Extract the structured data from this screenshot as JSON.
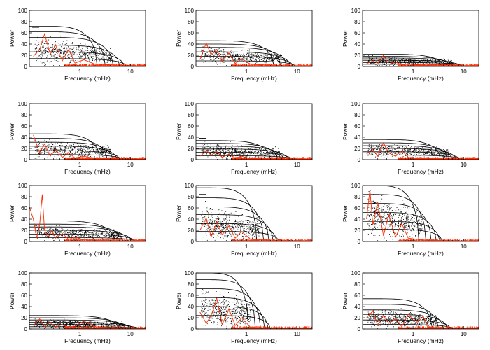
{
  "figure": {
    "axis_labels": {
      "x": "Frequency (mHz)",
      "y": "Power"
    },
    "grid": false
  },
  "chart_data": [
    {
      "type": "scatter",
      "panel": 1,
      "xscale": "log",
      "xlim": [
        0.1,
        20
      ],
      "ylim": [
        0,
        100
      ],
      "ytick_labels": [
        "0",
        "20",
        "40",
        "60",
        "80",
        "100"
      ],
      "xtick_labels": [
        "1",
        "10"
      ],
      "xlabel": "Frequency (mHz)",
      "ylabel": "Power",
      "contour_levels": [
        72,
        62,
        52,
        38,
        26,
        14
      ],
      "contour_extent_mhz": [
        2.2,
        3.2,
        4.6,
        6.2,
        7.6,
        8.4
      ],
      "scatter": {
        "center_power": 31,
        "spread_power": 11,
        "max_mhz": 4
      },
      "red_curve": {
        "x": [
          0.12,
          0.16,
          0.2,
          0.26,
          0.33,
          0.45,
          0.6,
          0.8,
          1.2,
          2,
          4,
          8,
          20
        ],
        "y": [
          18,
          30,
          58,
          22,
          38,
          10,
          30,
          6,
          12,
          4,
          3,
          2,
          1
        ]
      },
      "dash_power": 70,
      "colors": {
        "scatter": "#000000",
        "contours": "#000000",
        "red_curve": "#ff2a00"
      }
    },
    {
      "type": "scatter",
      "panel": 2,
      "xscale": "log",
      "xlim": [
        0.1,
        20
      ],
      "ylim": [
        0,
        100
      ],
      "ytick_labels": [
        "0",
        "20",
        "40",
        "60",
        "80",
        "100"
      ],
      "xtick_labels": [
        "1",
        "10"
      ],
      "xlabel": "Frequency (mHz)",
      "ylabel": "Power",
      "contour_levels": [
        46,
        40,
        34,
        26,
        18,
        10
      ],
      "contour_extent_mhz": [
        3.5,
        4.8,
        6.3,
        7.6,
        8.5,
        9.5
      ],
      "scatter": {
        "center_power": 23,
        "spread_power": 7,
        "max_mhz": 5
      },
      "red_curve": {
        "x": [
          0.12,
          0.16,
          0.2,
          0.26,
          0.33,
          0.45,
          0.6,
          0.8,
          1.2,
          2,
          4,
          8,
          20
        ],
        "y": [
          12,
          42,
          20,
          30,
          8,
          24,
          5,
          14,
          4,
          3,
          2,
          1,
          1
        ]
      },
      "colors": {
        "scatter": "#000000",
        "contours": "#000000",
        "red_curve": "#ff2a00"
      }
    },
    {
      "type": "scatter",
      "panel": 3,
      "xscale": "log",
      "xlim": [
        0.1,
        20
      ],
      "ylim": [
        0,
        100
      ],
      "ytick_labels": [
        "0",
        "20",
        "40",
        "60",
        "80",
        "100"
      ],
      "xtick_labels": [
        "1",
        "10"
      ],
      "xlabel": "Frequency (mHz)",
      "ylabel": "Power",
      "contour_levels": [
        22,
        18,
        15,
        11,
        7,
        4
      ],
      "contour_extent_mhz": [
        4,
        5.5,
        7,
        9,
        10.5,
        11.5
      ],
      "scatter": {
        "center_power": 11,
        "spread_power": 4,
        "max_mhz": 6
      },
      "red_curve": {
        "x": [
          0.12,
          0.16,
          0.2,
          0.26,
          0.33,
          0.45,
          0.6,
          0.8,
          1.2,
          2,
          4,
          8,
          20
        ],
        "y": [
          5,
          10,
          6,
          20,
          4,
          8,
          3,
          5,
          2,
          2,
          1,
          1,
          1
        ]
      },
      "colors": {
        "scatter": "#000000",
        "contours": "#000000",
        "red_curve": "#ff2a00"
      }
    },
    {
      "type": "scatter",
      "panel": 4,
      "xscale": "log",
      "xlim": [
        0.1,
        20
      ],
      "ylim": [
        0,
        100
      ],
      "ytick_labels": [
        "0",
        "20",
        "40",
        "60",
        "80",
        "100"
      ],
      "xtick_labels": [
        "1",
        "10"
      ],
      "xlabel": "Frequency (mHz)",
      "ylabel": "Power",
      "contour_levels": [
        46,
        38,
        31,
        24,
        16,
        9
      ],
      "contour_extent_mhz": [
        2.5,
        3.5,
        4.5,
        5.5,
        6.3,
        7
      ],
      "scatter": {
        "center_power": 22,
        "spread_power": 8,
        "max_mhz": 4
      },
      "red_curve": {
        "x": [
          0.12,
          0.16,
          0.2,
          0.26,
          0.33,
          0.45,
          0.6,
          0.8,
          1.2,
          2,
          4,
          8,
          20
        ],
        "y": [
          44,
          12,
          28,
          6,
          18,
          4,
          12,
          3,
          6,
          2,
          2,
          1,
          1
        ]
      },
      "colors": {
        "scatter": "#000000",
        "contours": "#000000",
        "red_curve": "#ff2a00"
      }
    },
    {
      "type": "scatter",
      "panel": 5,
      "xscale": "log",
      "xlim": [
        0.1,
        20
      ],
      "ylim": [
        0,
        100
      ],
      "ytick_labels": [
        "0",
        "20",
        "40",
        "60",
        "80",
        "100"
      ],
      "xtick_labels": [
        "1",
        "10"
      ],
      "xlabel": "Frequency (mHz)",
      "ylabel": "Power",
      "contour_levels": [
        34,
        29,
        24,
        19,
        13,
        7
      ],
      "contour_extent_mhz": [
        3,
        4.2,
        5.5,
        6.8,
        7.8,
        8.5
      ],
      "scatter": {
        "center_power": 18,
        "spread_power": 6,
        "max_mhz": 4.5
      },
      "red_curve": {
        "x": [
          0.12,
          0.16,
          0.2,
          0.26,
          0.33,
          0.45,
          0.6,
          0.8,
          1.2,
          2,
          4,
          8,
          20
        ],
        "y": [
          6,
          16,
          8,
          14,
          4,
          10,
          3,
          6,
          2,
          2,
          1,
          1,
          1
        ]
      },
      "dash_power": 38,
      "colors": {
        "scatter": "#000000",
        "contours": "#000000",
        "red_curve": "#ff2a00"
      }
    },
    {
      "type": "scatter",
      "panel": 6,
      "xscale": "log",
      "xlim": [
        0.1,
        20
      ],
      "ylim": [
        0,
        100
      ],
      "ytick_labels": [
        "0",
        "20",
        "40",
        "60",
        "80",
        "100"
      ],
      "xtick_labels": [
        "1",
        "10"
      ],
      "xlabel": "Frequency (mHz)",
      "ylabel": "Power",
      "contour_levels": [
        36,
        30,
        25,
        20,
        14,
        8
      ],
      "contour_extent_mhz": [
        3.5,
        4.8,
        6,
        7.3,
        8.3,
        9
      ],
      "scatter": {
        "center_power": 19,
        "spread_power": 6,
        "max_mhz": 5
      },
      "red_curve": {
        "x": [
          0.12,
          0.16,
          0.2,
          0.26,
          0.33,
          0.45,
          0.6,
          0.8,
          1.2,
          2,
          4,
          8,
          20
        ],
        "y": [
          10,
          18,
          6,
          30,
          12,
          6,
          16,
          4,
          2,
          2,
          1,
          1,
          1
        ]
      },
      "colors": {
        "scatter": "#000000",
        "contours": "#000000",
        "red_curve": "#ff2a00"
      }
    },
    {
      "type": "scatter",
      "panel": 7,
      "xscale": "log",
      "xlim": [
        0.1,
        20
      ],
      "ylim": [
        0,
        100
      ],
      "ytick_labels": [
        "0",
        "20",
        "40",
        "60",
        "80",
        "100"
      ],
      "xtick_labels": [
        "1",
        "10"
      ],
      "xlabel": "Frequency (mHz)",
      "ylabel": "Power",
      "contour_levels": [
        37,
        31,
        26,
        20,
        13,
        7
      ],
      "contour_extent_mhz": [
        5,
        7,
        9,
        11,
        12.5,
        13.5
      ],
      "scatter": {
        "center_power": 18,
        "spread_power": 6,
        "max_mhz": 6
      },
      "red_curve": {
        "x": [
          0.1,
          0.12,
          0.14,
          0.16,
          0.18,
          0.2,
          0.24,
          0.28,
          0.33,
          0.45,
          0.6,
          0.8,
          1.2,
          2,
          4,
          8,
          20
        ],
        "y": [
          62,
          40,
          6,
          30,
          84,
          20,
          8,
          20,
          6,
          14,
          4,
          8,
          3,
          2,
          1,
          1,
          1
        ]
      },
      "colors": {
        "scatter": "#000000",
        "contours": "#000000",
        "red_curve": "#ff2a00"
      }
    },
    {
      "type": "scatter",
      "panel": 8,
      "xscale": "log",
      "xlim": [
        0.1,
        20
      ],
      "ylim": [
        0,
        100
      ],
      "ytick_labels": [
        "0",
        "20",
        "40",
        "60",
        "80",
        "100"
      ],
      "xtick_labels": [
        "1",
        "10"
      ],
      "xlabel": "Frequency (mHz)",
      "ylabel": "Power",
      "contour_levels": [
        96,
        78,
        62,
        48,
        32,
        18
      ],
      "contour_extent_mhz": [
        1.6,
        2.2,
        2.8,
        3.4,
        4,
        4.4
      ],
      "scatter": {
        "center_power": 34,
        "spread_power": 14,
        "max_mhz": 1.8
      },
      "red_curve": {
        "x": [
          0.12,
          0.16,
          0.2,
          0.26,
          0.33,
          0.45,
          0.6,
          0.8,
          1.2,
          2,
          4,
          8,
          20
        ],
        "y": [
          20,
          42,
          8,
          36,
          12,
          28,
          6,
          18,
          4,
          3,
          2,
          1,
          1
        ]
      },
      "dash_power": 84,
      "colors": {
        "scatter": "#000000",
        "contours": "#000000",
        "red_curve": "#ff2a00"
      }
    },
    {
      "type": "scatter",
      "panel": 9,
      "xscale": "log",
      "xlim": [
        0.1,
        20
      ],
      "ylim": [
        0,
        100
      ],
      "ytick_labels": [
        "0",
        "20",
        "40",
        "60",
        "80",
        "100"
      ],
      "xtick_labels": [
        "1",
        "10"
      ],
      "xlabel": "Frequency (mHz)",
      "ylabel": "Power",
      "contour_levels": [
        100,
        84,
        68,
        52,
        36,
        22
      ],
      "contour_extent_mhz": [
        1.3,
        1.8,
        2.3,
        2.9,
        3.4,
        3.8
      ],
      "scatter": {
        "center_power": 48,
        "spread_power": 18,
        "max_mhz": 1.5
      },
      "red_curve": {
        "x": [
          0.12,
          0.14,
          0.16,
          0.2,
          0.26,
          0.33,
          0.45,
          0.6,
          0.8,
          1.2,
          2,
          4,
          8,
          20
        ],
        "y": [
          40,
          92,
          30,
          70,
          10,
          48,
          8,
          32,
          6,
          4,
          2,
          2,
          1,
          1
        ]
      },
      "colors": {
        "scatter": "#000000",
        "contours": "#000000",
        "red_curve": "#ff2a00"
      }
    },
    {
      "type": "scatter",
      "panel": 10,
      "xscale": "log",
      "xlim": [
        0.1,
        20
      ],
      "ylim": [
        0,
        100
      ],
      "ytick_labels": [
        "0",
        "20",
        "40",
        "60",
        "80",
        "100"
      ],
      "xtick_labels": [
        "1",
        "10"
      ],
      "xlabel": "Frequency (mHz)",
      "ylabel": "Power",
      "contour_levels": [
        24,
        20,
        16,
        12,
        8,
        4
      ],
      "contour_extent_mhz": [
        6,
        8,
        10,
        12,
        15,
        18
      ],
      "scatter": {
        "center_power": 11,
        "spread_power": 4,
        "max_mhz": 7
      },
      "red_curve": {
        "x": [
          0.12,
          0.16,
          0.2,
          0.26,
          0.33,
          0.45,
          0.6,
          0.8,
          1.2,
          2,
          4,
          8,
          20
        ],
        "y": [
          6,
          18,
          4,
          12,
          3,
          8,
          2,
          5,
          14,
          4,
          2,
          1,
          1
        ]
      },
      "colors": {
        "scatter": "#000000",
        "contours": "#000000",
        "red_curve": "#ff2a00"
      }
    },
    {
      "type": "scatter",
      "panel": 11,
      "xscale": "log",
      "xlim": [
        0.1,
        20
      ],
      "ylim": [
        0,
        100
      ],
      "ytick_labels": [
        "0",
        "20",
        "40",
        "60",
        "80",
        "100"
      ],
      "xtick_labels": [
        "1",
        "10"
      ],
      "xlabel": "Frequency (mHz)",
      "ylabel": "Power",
      "contour_levels": [
        100,
        88,
        72,
        56,
        40,
        24
      ],
      "contour_extent_mhz": [
        1.1,
        1.5,
        1.9,
        2.3,
        2.7,
        3
      ],
      "scatter": {
        "center_power": 40,
        "spread_power": 18,
        "max_mhz": 1.2
      },
      "red_curve": {
        "x": [
          0.12,
          0.16,
          0.2,
          0.26,
          0.33,
          0.45,
          0.6,
          0.8,
          1.2,
          2,
          4,
          8,
          20
        ],
        "y": [
          30,
          10,
          24,
          54,
          8,
          36,
          6,
          20,
          3,
          2,
          2,
          1,
          1
        ]
      },
      "colors": {
        "scatter": "#000000",
        "contours": "#000000",
        "red_curve": "#ff2a00"
      }
    },
    {
      "type": "scatter",
      "panel": 12,
      "xscale": "log",
      "xlim": [
        0.1,
        20
      ],
      "ylim": [
        0,
        100
      ],
      "ytick_labels": [
        "0",
        "20",
        "40",
        "60",
        "80",
        "100"
      ],
      "xtick_labels": [
        "1",
        "10"
      ],
      "xlabel": "Frequency (mHz)",
      "ylabel": "Power",
      "contour_levels": [
        54,
        44,
        34,
        26,
        16,
        8
      ],
      "contour_extent_mhz": [
        2.4,
        3.2,
        4,
        4.8,
        5.6,
        6.2
      ],
      "scatter": {
        "center_power": 22,
        "spread_power": 8,
        "max_mhz": 3
      },
      "red_curve": {
        "x": [
          0.12,
          0.16,
          0.2,
          0.26,
          0.33,
          0.45,
          0.6,
          0.8,
          1.2,
          1.6,
          2,
          4,
          8,
          20
        ],
        "y": [
          20,
          32,
          6,
          24,
          10,
          18,
          4,
          26,
          12,
          22,
          3,
          2,
          1,
          1
        ]
      },
      "colors": {
        "scatter": "#000000",
        "contours": "#000000",
        "red_curve": "#ff2a00"
      }
    }
  ]
}
